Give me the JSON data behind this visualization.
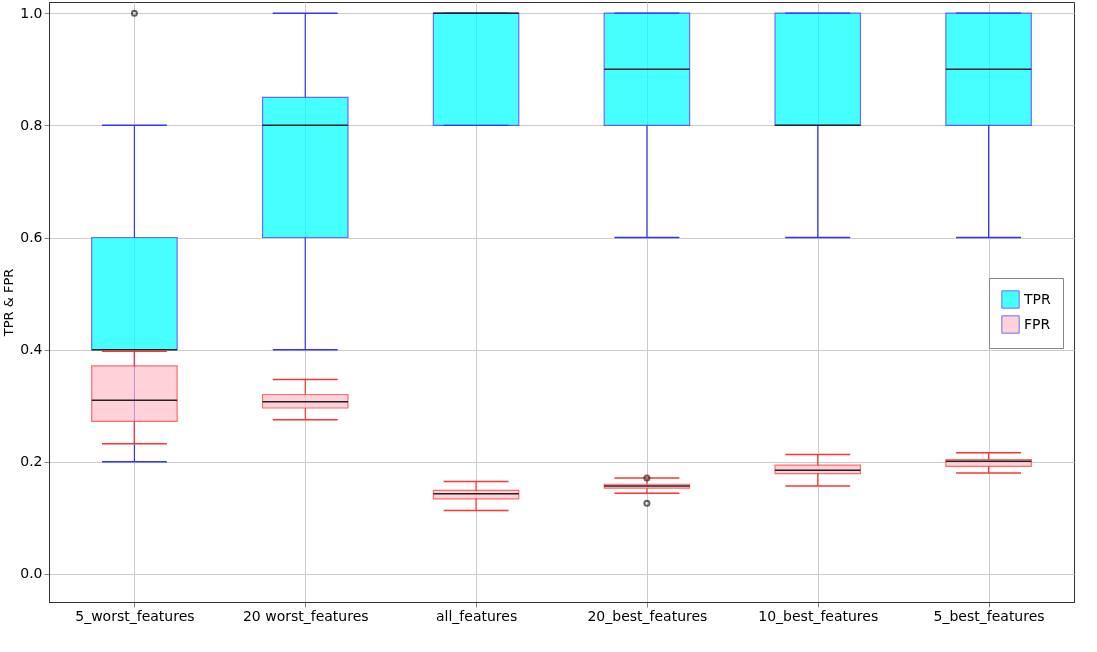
{
  "chart_data": {
    "type": "box",
    "ylabel": "TPR & FPR",
    "categories": [
      "5_worst_features",
      "20 worst_features",
      "all_features",
      "20_best_features",
      "10_best_features",
      "5_best_features"
    ],
    "ylim": [
      -0.05,
      1.02
    ],
    "yticks": [
      {
        "value": 0,
        "label": "0.0"
      },
      {
        "value": 0.2,
        "label": "0.2"
      },
      {
        "value": 0.4,
        "label": "0.4"
      },
      {
        "value": 0.6,
        "label": "0.6"
      },
      {
        "value": 0.8,
        "label": "0.8"
      },
      {
        "value": 1,
        "label": "1.0"
      }
    ],
    "grid": true,
    "legend": "right",
    "series": [
      {
        "name": "TPR",
        "color": "#00ffff",
        "boxes": [
          {
            "low": 0.2,
            "q1": 0.4,
            "median": 0.4,
            "q3": 0.6,
            "high": 0.8,
            "outliers": [
              1.0
            ]
          },
          {
            "low": 0.4,
            "q1": 0.6,
            "median": 0.8,
            "q3": 0.85,
            "high": 1.0
          },
          {
            "low": 0.8,
            "q1": 0.8,
            "median": 1.0,
            "q3": 1.0,
            "high": 1.0
          },
          {
            "low": 0.6,
            "q1": 0.8,
            "median": 0.9,
            "q3": 1.0,
            "high": 1.0
          },
          {
            "low": 0.6,
            "q1": 0.8,
            "median": 0.8,
            "q3": 1.0,
            "high": 1.0
          },
          {
            "low": 0.6,
            "q1": 0.8,
            "median": 0.9,
            "q3": 1.0,
            "high": 1.0
          }
        ]
      },
      {
        "name": "FPR",
        "color": "#ffc0cb",
        "boxes": [
          {
            "low": 0.232,
            "q1": 0.272,
            "median": 0.31,
            "q3": 0.371,
            "high": 0.397
          },
          {
            "low": 0.275,
            "q1": 0.296,
            "median": 0.307,
            "q3": 0.32,
            "high": 0.347
          },
          {
            "low": 0.113,
            "q1": 0.134,
            "median": 0.143,
            "q3": 0.149,
            "high": 0.165
          },
          {
            "low": 0.144,
            "q1": 0.153,
            "median": 0.157,
            "q3": 0.16,
            "high": 0.171,
            "outliers": [
              0.171,
              0.126
            ]
          },
          {
            "low": 0.157,
            "q1": 0.179,
            "median": 0.185,
            "q3": 0.194,
            "high": 0.213
          },
          {
            "low": 0.18,
            "q1": 0.192,
            "median": 0.201,
            "q3": 0.204,
            "high": 0.216
          }
        ]
      }
    ]
  }
}
